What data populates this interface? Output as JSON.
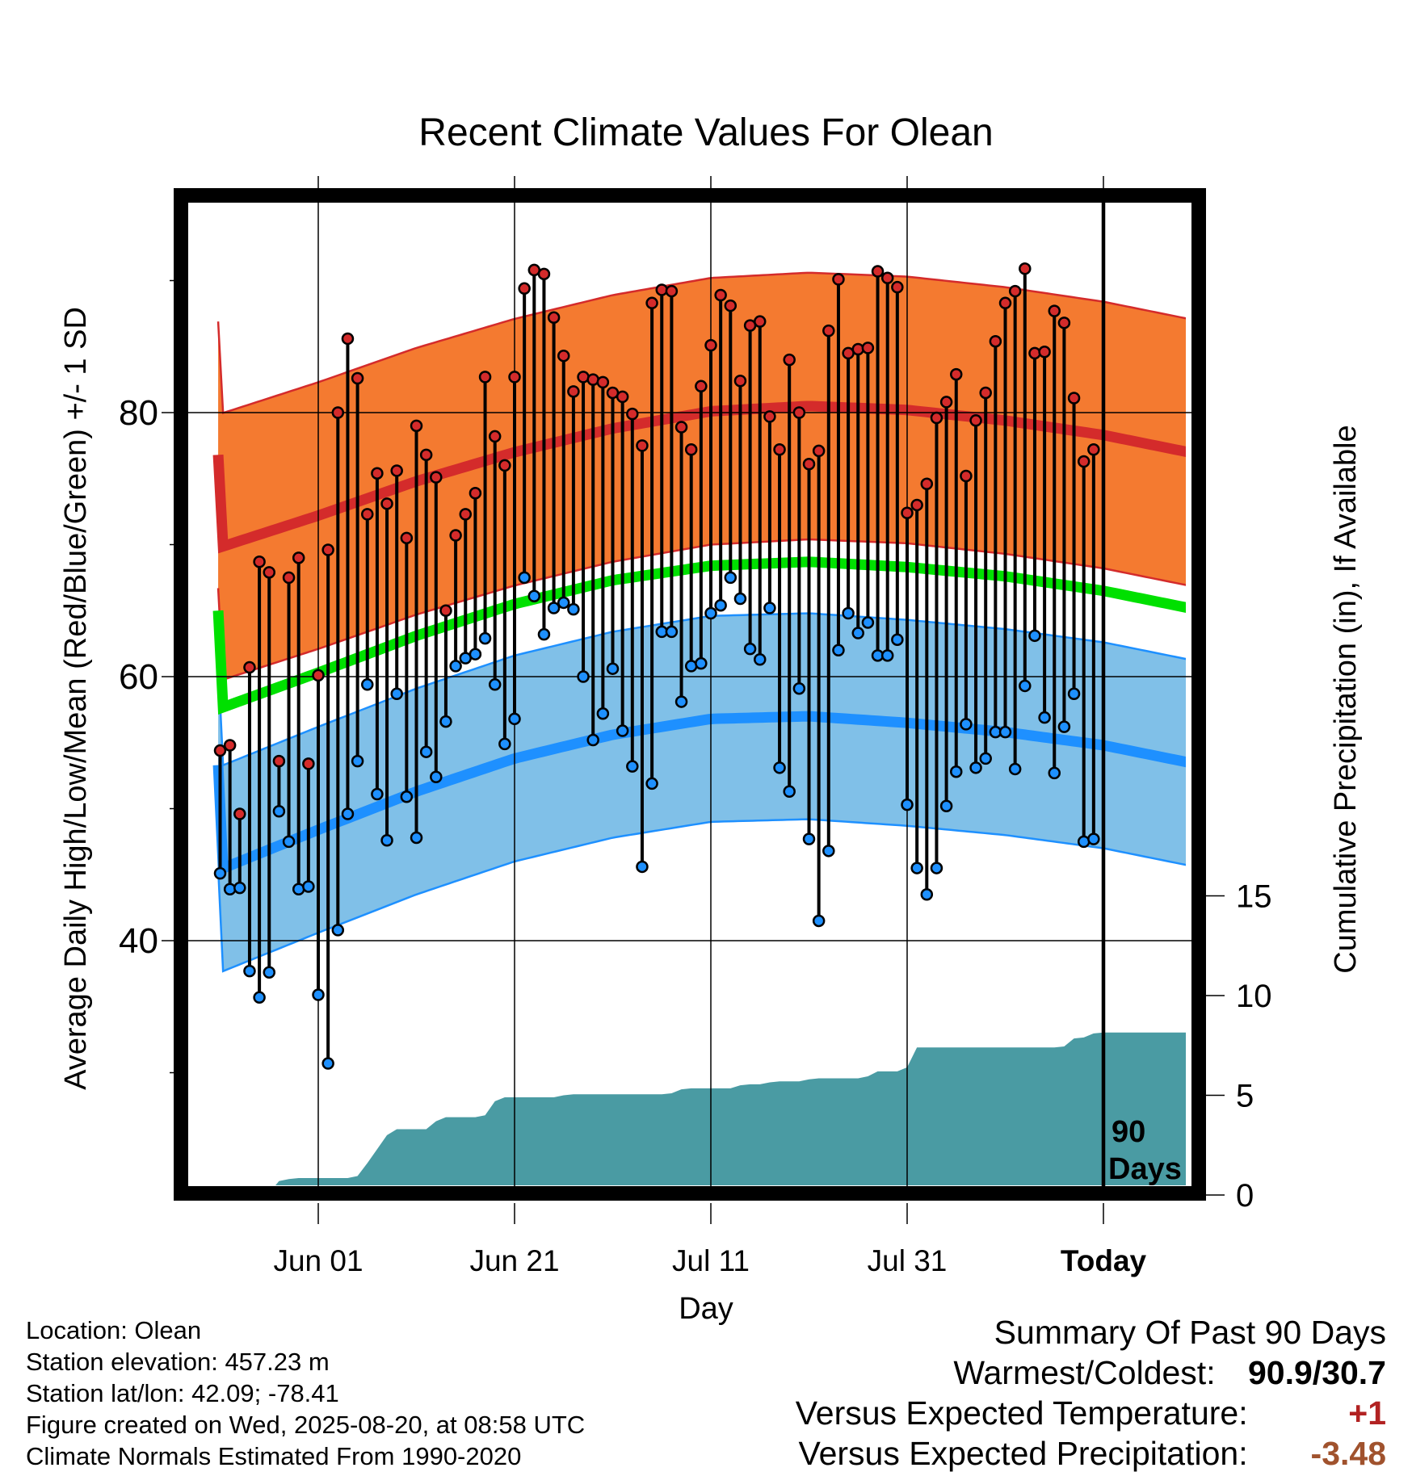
{
  "chart_data": {
    "type": "line",
    "title": "Recent Climate Values For Olean",
    "xlabel": "Day",
    "ylabel": "Average Daily High/Low/Mean (Red/Blue/Green) +/- 1 SD",
    "y2label": "Cumulative Precipitation (in), If Available",
    "xlim": [
      -10,
      80
    ],
    "ylim": [
      22,
      97
    ],
    "y2lim": [
      0,
      31
    ],
    "x_ticks": [
      {
        "x": 0,
        "label": "Jun 01"
      },
      {
        "x": 20,
        "label": "Jun 21"
      },
      {
        "x": 40,
        "label": "Jul 11"
      },
      {
        "x": 60,
        "label": "Jul 31"
      },
      {
        "x": 80,
        "label": "Today"
      }
    ],
    "y_ticks": [
      40,
      60,
      80
    ],
    "y_minor_ticks": [
      30,
      50,
      70,
      90
    ],
    "y2_ticks": [
      0,
      5,
      10,
      15
    ],
    "today_x": 80,
    "today_label": [
      "90",
      "Days"
    ],
    "normals": {
      "x": [
        -10,
        0,
        10,
        20,
        30,
        40,
        50,
        60,
        70,
        80,
        90
      ],
      "high_mean": [
        69.8,
        72.2,
        74.8,
        77.0,
        78.8,
        80.1,
        80.5,
        80.2,
        79.4,
        78.3,
        76.8
      ],
      "high_sd": 10.1,
      "low_mean": 45.4,
      "low_mean_values": [
        45.4,
        48.4,
        51.3,
        53.8,
        55.6,
        56.8,
        57.0,
        56.5,
        55.8,
        54.8,
        53.3
      ],
      "low_sd": 7.8,
      "mean": [
        57.6,
        60.3,
        63.1,
        65.5,
        67.3,
        68.4,
        68.7,
        68.3,
        67.6,
        66.5,
        65.0
      ]
    },
    "series": [
      {
        "name": "High",
        "color": "#d42b2b",
        "x": [
          -10,
          -9,
          -8,
          -7,
          -6,
          -5,
          -4,
          -3,
          -2,
          -1,
          0,
          1,
          2,
          3,
          4,
          5,
          6,
          7,
          8,
          9,
          10,
          11,
          12,
          13,
          14,
          15,
          16,
          17,
          18,
          19,
          20,
          21,
          22,
          23,
          24,
          25,
          26,
          27,
          28,
          29,
          30,
          31,
          32,
          33,
          34,
          35,
          36,
          37,
          38,
          39,
          40,
          41,
          42,
          43,
          44,
          45,
          46,
          47,
          48,
          49,
          50,
          51,
          52,
          53,
          54,
          55,
          56,
          57,
          58,
          59,
          60,
          61,
          62,
          63,
          64,
          65,
          66,
          67,
          68,
          69,
          70,
          71,
          72,
          73,
          74,
          75,
          76,
          77,
          78,
          79
        ],
        "values": [
          54.4,
          54.8,
          49.6,
          60.7,
          68.7,
          67.9,
          53.6,
          67.5,
          69.0,
          53.4,
          60.1,
          69.6,
          80.0,
          85.6,
          82.6,
          72.3,
          75.4,
          73.1,
          75.6,
          70.5,
          79.0,
          76.8,
          75.1,
          65.0,
          70.7,
          72.3,
          73.9,
          82.7,
          78.2,
          76.0,
          82.7,
          89.4,
          90.8,
          90.5,
          87.2,
          84.3,
          81.6,
          82.7,
          82.5,
          82.3,
          81.5,
          81.2,
          79.9,
          77.5,
          88.3,
          89.3,
          89.2,
          78.9,
          77.2,
          82.0,
          85.1,
          88.9,
          88.1,
          82.4,
          86.6,
          86.9,
          79.7,
          77.2,
          84.0,
          80.0,
          76.1,
          77.1,
          86.2,
          90.1,
          84.5,
          84.8,
          84.9,
          90.7,
          90.2,
          89.5,
          72.4,
          73.0,
          74.6,
          79.6,
          80.8,
          82.9,
          75.2,
          79.4,
          81.5,
          85.4,
          88.3,
          89.2,
          90.9,
          84.5,
          84.6,
          87.7,
          86.8,
          81.1,
          76.3,
          77.2
        ]
      },
      {
        "name": "Low",
        "color": "#1e90ff",
        "x": [
          -10,
          -9,
          -8,
          -7,
          -6,
          -5,
          -4,
          -3,
          -2,
          -1,
          0,
          1,
          2,
          3,
          4,
          5,
          6,
          7,
          8,
          9,
          10,
          11,
          12,
          13,
          14,
          15,
          16,
          17,
          18,
          19,
          20,
          21,
          22,
          23,
          24,
          25,
          26,
          27,
          28,
          29,
          30,
          31,
          32,
          33,
          34,
          35,
          36,
          37,
          38,
          39,
          40,
          41,
          42,
          43,
          44,
          45,
          46,
          47,
          48,
          49,
          50,
          51,
          52,
          53,
          54,
          55,
          56,
          57,
          58,
          59,
          60,
          61,
          62,
          63,
          64,
          65,
          66,
          67,
          68,
          69,
          70,
          71,
          72,
          73,
          74,
          75,
          76,
          77,
          78,
          79
        ],
        "values": [
          45.1,
          43.9,
          44.0,
          37.7,
          35.7,
          37.6,
          49.8,
          47.5,
          43.9,
          44.1,
          35.9,
          30.7,
          40.8,
          49.6,
          53.6,
          59.4,
          51.1,
          47.6,
          58.7,
          50.9,
          47.8,
          54.3,
          52.4,
          56.6,
          60.8,
          61.4,
          61.7,
          62.9,
          59.4,
          54.9,
          56.8,
          67.5,
          66.1,
          63.2,
          65.2,
          65.6,
          65.1,
          60.0,
          55.2,
          57.2,
          60.6,
          55.9,
          53.2,
          45.6,
          51.9,
          63.4,
          63.4,
          58.1,
          60.8,
          61.0,
          64.8,
          65.4,
          67.5,
          65.9,
          62.1,
          61.3,
          65.2,
          53.1,
          51.3,
          59.1,
          47.7,
          41.5,
          46.8,
          62.0,
          64.8,
          63.3,
          64.1,
          61.6,
          61.6,
          62.8,
          50.3,
          45.5,
          43.5,
          45.5,
          50.2,
          52.8,
          56.4,
          53.1,
          53.8,
          55.8,
          55.8,
          53.0,
          59.3,
          63.1,
          56.9,
          52.7,
          56.2,
          58.7,
          47.5,
          47.7
        ]
      }
    ],
    "precip": {
      "x": [
        -10,
        -9,
        -8,
        -7,
        -6,
        -5,
        -4,
        -3,
        -2,
        -1,
        0,
        1,
        2,
        3,
        4,
        5,
        6,
        7,
        8,
        9,
        10,
        11,
        12,
        13,
        14,
        15,
        16,
        17,
        18,
        19,
        20,
        21,
        22,
        23,
        24,
        25,
        26,
        27,
        28,
        29,
        30,
        31,
        32,
        33,
        34,
        35,
        36,
        37,
        38,
        39,
        40,
        41,
        42,
        43,
        44,
        45,
        46,
        47,
        48,
        49,
        50,
        51,
        52,
        53,
        54,
        55,
        56,
        57,
        58,
        59,
        60,
        61,
        62,
        63,
        64,
        65,
        66,
        67,
        68,
        69,
        70,
        71,
        72,
        73,
        74,
        75,
        76,
        77,
        78,
        79,
        80,
        81,
        82,
        83,
        84,
        85,
        86,
        87,
        88,
        89,
        90
      ],
      "values": [
        0,
        0,
        0,
        0,
        0,
        0.1,
        0.7,
        0.8,
        0.85,
        0.85,
        0.85,
        0.85,
        0.85,
        0.85,
        0.95,
        1.6,
        2.3,
        3.0,
        3.3,
        3.3,
        3.3,
        3.3,
        3.7,
        3.9,
        3.9,
        3.9,
        3.9,
        4.0,
        4.7,
        4.9,
        4.9,
        4.9,
        4.9,
        4.9,
        4.9,
        5.0,
        5.05,
        5.05,
        5.05,
        5.05,
        5.05,
        5.05,
        5.05,
        5.05,
        5.05,
        5.05,
        5.1,
        5.3,
        5.35,
        5.35,
        5.35,
        5.35,
        5.35,
        5.5,
        5.55,
        5.55,
        5.65,
        5.7,
        5.7,
        5.7,
        5.8,
        5.85,
        5.85,
        5.85,
        5.85,
        5.85,
        5.95,
        6.2,
        6.2,
        6.2,
        6.4,
        7.4,
        7.4,
        7.4,
        7.4,
        7.4,
        7.4,
        7.4,
        7.4,
        7.4,
        7.4,
        7.4,
        7.4,
        7.4,
        7.4,
        7.4,
        7.45,
        7.85,
        7.9,
        8.1,
        8.15,
        8.15,
        8.15,
        8.15,
        8.15,
        8.15,
        8.15,
        8.15,
        8.15,
        8.15,
        8.15
      ]
    }
  },
  "colors": {
    "high_band": "#f47a30",
    "high_line": "#d42b2b",
    "low_band": "#80c0e8",
    "low_line": "#1e90ff",
    "mean_line": "#00e000",
    "precip": "#4a9ba3"
  },
  "info": [
    "Location: Olean",
    "Station elevation: 457.23 m",
    "Station lat/lon: 42.09; -78.41",
    "Figure created on Wed, 2025-08-20, at 08:58 UTC",
    "Climate Normals Estimated From 1990-2020"
  ],
  "summary": {
    "title": "Summary Of Past 90 Days",
    "warmest_label": "Warmest/Coldest:",
    "warmest_value": "90.9/30.7",
    "temp_label": "Versus Expected Temperature:",
    "temp_value": "+1",
    "precip_label": "Versus Expected Precipitation:",
    "precip_value": "-3.48"
  }
}
